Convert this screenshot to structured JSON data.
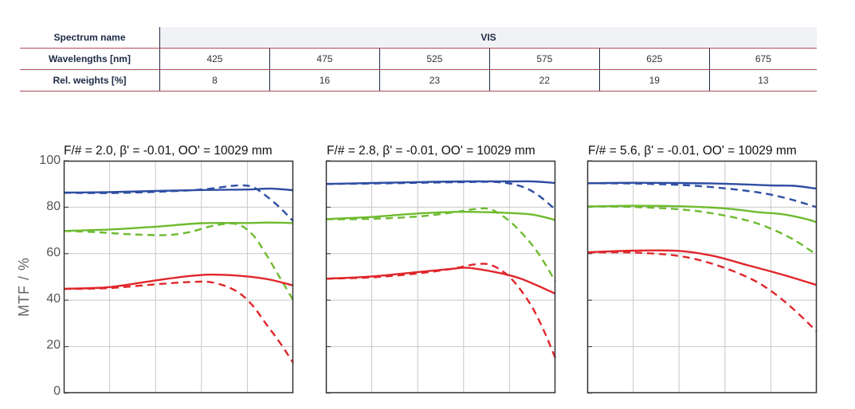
{
  "table": {
    "spectrum_label": "Spectrum name",
    "spectrum_value": "VIS",
    "wavelength_label": "Wavelengths [nm]",
    "wavelengths": [
      "425",
      "475",
      "525",
      "575",
      "625",
      "675"
    ],
    "weights_label": "Rel. weights [%]",
    "weights": [
      "8",
      "16",
      "23",
      "22",
      "19",
      "13"
    ]
  },
  "colors": {
    "blue": "#2f4ea3",
    "green": "#6dbb2e",
    "red": "#e0262a",
    "grid": "#c8c8c8",
    "frame": "#333333"
  },
  "chart_data": [
    {
      "type": "line",
      "title": "F/# = 2.0, β' = -0.01, OO' = 10029 mm",
      "ylabel": "MTF / %",
      "ylim": [
        0,
        100
      ],
      "xlim": [
        0,
        1
      ],
      "yticks": [
        "100",
        "80",
        "60",
        "40",
        "20",
        "0"
      ],
      "series": [
        {
          "color": "blue",
          "dash": false,
          "x": [
            0,
            0.2,
            0.4,
            0.6,
            0.8,
            0.9,
            1.0
          ],
          "y": [
            86.3,
            86.5,
            87.0,
            87.4,
            87.6,
            88.0,
            87.3
          ]
        },
        {
          "color": "blue",
          "dash": true,
          "x": [
            0,
            0.2,
            0.4,
            0.6,
            0.75,
            0.82,
            0.88,
            0.94,
            1.0
          ],
          "y": [
            86.2,
            86.1,
            86.6,
            87.6,
            89.3,
            88.8,
            85.0,
            80.0,
            74.0
          ]
        },
        {
          "color": "green",
          "dash": false,
          "x": [
            0,
            0.2,
            0.4,
            0.6,
            0.8,
            0.9,
            1.0
          ],
          "y": [
            69.8,
            70.4,
            71.6,
            73.1,
            73.2,
            73.4,
            73.2
          ]
        },
        {
          "color": "green",
          "dash": true,
          "x": [
            0,
            0.15,
            0.3,
            0.45,
            0.55,
            0.65,
            0.75,
            0.82,
            0.88,
            0.94,
            1.0
          ],
          "y": [
            69.8,
            69.2,
            68.3,
            68.0,
            69.3,
            72.0,
            72.8,
            68.5,
            60.0,
            50.0,
            40.0
          ]
        },
        {
          "color": "red",
          "dash": false,
          "x": [
            0,
            0.2,
            0.4,
            0.55,
            0.65,
            0.8,
            0.9,
            1.0
          ],
          "y": [
            44.9,
            45.6,
            48.5,
            50.4,
            51.0,
            50.2,
            48.8,
            46.3
          ]
        },
        {
          "color": "red",
          "dash": true,
          "x": [
            0,
            0.2,
            0.4,
            0.55,
            0.65,
            0.75,
            0.82,
            0.88,
            0.94,
            1.0
          ],
          "y": [
            44.8,
            45.2,
            46.8,
            47.8,
            47.6,
            44.0,
            38.0,
            30.0,
            22.0,
            13.0
          ]
        }
      ]
    },
    {
      "type": "line",
      "title": "F/# = 2.8, β' = -0.01, OO' = 10029 mm",
      "ylim": [
        0,
        100
      ],
      "xlim": [
        0,
        1
      ],
      "series": [
        {
          "color": "blue",
          "dash": false,
          "x": [
            0,
            0.2,
            0.4,
            0.6,
            0.8,
            0.9,
            1.0
          ],
          "y": [
            90.0,
            90.4,
            90.8,
            91.1,
            91.1,
            91.1,
            90.4
          ]
        },
        {
          "color": "blue",
          "dash": true,
          "x": [
            0,
            0.2,
            0.4,
            0.6,
            0.75,
            0.85,
            0.92,
            1.0
          ],
          "y": [
            90.0,
            90.2,
            90.5,
            90.8,
            90.8,
            89.0,
            85.5,
            79.0
          ]
        },
        {
          "color": "green",
          "dash": false,
          "x": [
            0,
            0.2,
            0.4,
            0.6,
            0.8,
            0.9,
            1.0
          ],
          "y": [
            74.9,
            75.8,
            77.3,
            78.0,
            77.5,
            76.8,
            74.5
          ]
        },
        {
          "color": "green",
          "dash": true,
          "x": [
            0,
            0.2,
            0.4,
            0.55,
            0.65,
            0.72,
            0.8,
            0.88,
            0.94,
            1.0
          ],
          "y": [
            74.8,
            75.0,
            76.0,
            77.7,
            79.2,
            79.0,
            74.0,
            66.0,
            58.0,
            48.0
          ]
        },
        {
          "color": "red",
          "dash": false,
          "x": [
            0,
            0.2,
            0.4,
            0.55,
            0.62,
            0.75,
            0.85,
            1.0
          ],
          "y": [
            49.2,
            50.2,
            52.1,
            53.5,
            53.9,
            51.8,
            49.2,
            42.8
          ]
        },
        {
          "color": "red",
          "dash": true,
          "x": [
            0,
            0.2,
            0.4,
            0.55,
            0.65,
            0.72,
            0.8,
            0.88,
            0.94,
            1.0
          ],
          "y": [
            49.2,
            49.8,
            51.5,
            53.5,
            55.4,
            55.1,
            50.0,
            40.0,
            29.0,
            15.0
          ]
        }
      ]
    },
    {
      "type": "line",
      "title": "F/# = 5.6, β' = -0.01, OO' = 10029 mm",
      "ylim": [
        0,
        100
      ],
      "xlim": [
        0,
        1
      ],
      "series": [
        {
          "color": "blue",
          "dash": false,
          "x": [
            0,
            0.2,
            0.4,
            0.6,
            0.8,
            0.9,
            1.0
          ],
          "y": [
            90.3,
            90.5,
            90.4,
            90.1,
            89.4,
            89.2,
            88.0
          ]
        },
        {
          "color": "blue",
          "dash": true,
          "x": [
            0,
            0.2,
            0.4,
            0.55,
            0.7,
            0.8,
            0.9,
            1.0
          ],
          "y": [
            90.3,
            90.2,
            89.6,
            88.6,
            87.0,
            85.4,
            83.0,
            80.0
          ]
        },
        {
          "color": "green",
          "dash": false,
          "x": [
            0,
            0.2,
            0.4,
            0.6,
            0.75,
            0.85,
            0.95,
            1.0
          ],
          "y": [
            80.3,
            80.6,
            80.4,
            79.5,
            77.8,
            77.0,
            75.0,
            73.5
          ]
        },
        {
          "color": "green",
          "dash": true,
          "x": [
            0,
            0.2,
            0.4,
            0.55,
            0.7,
            0.8,
            0.9,
            1.0
          ],
          "y": [
            80.3,
            80.1,
            79.1,
            77.3,
            74.2,
            70.8,
            66.0,
            59.5
          ]
        },
        {
          "color": "red",
          "dash": false,
          "x": [
            0,
            0.2,
            0.4,
            0.55,
            0.7,
            0.85,
            1.0
          ],
          "y": [
            60.6,
            61.3,
            61.2,
            59.0,
            55.0,
            51.0,
            46.5
          ]
        },
        {
          "color": "red",
          "dash": true,
          "x": [
            0,
            0.2,
            0.4,
            0.55,
            0.7,
            0.8,
            0.9,
            1.0
          ],
          "y": [
            60.5,
            60.5,
            59.0,
            55.5,
            49.8,
            44.0,
            36.0,
            26.5
          ]
        }
      ]
    }
  ]
}
